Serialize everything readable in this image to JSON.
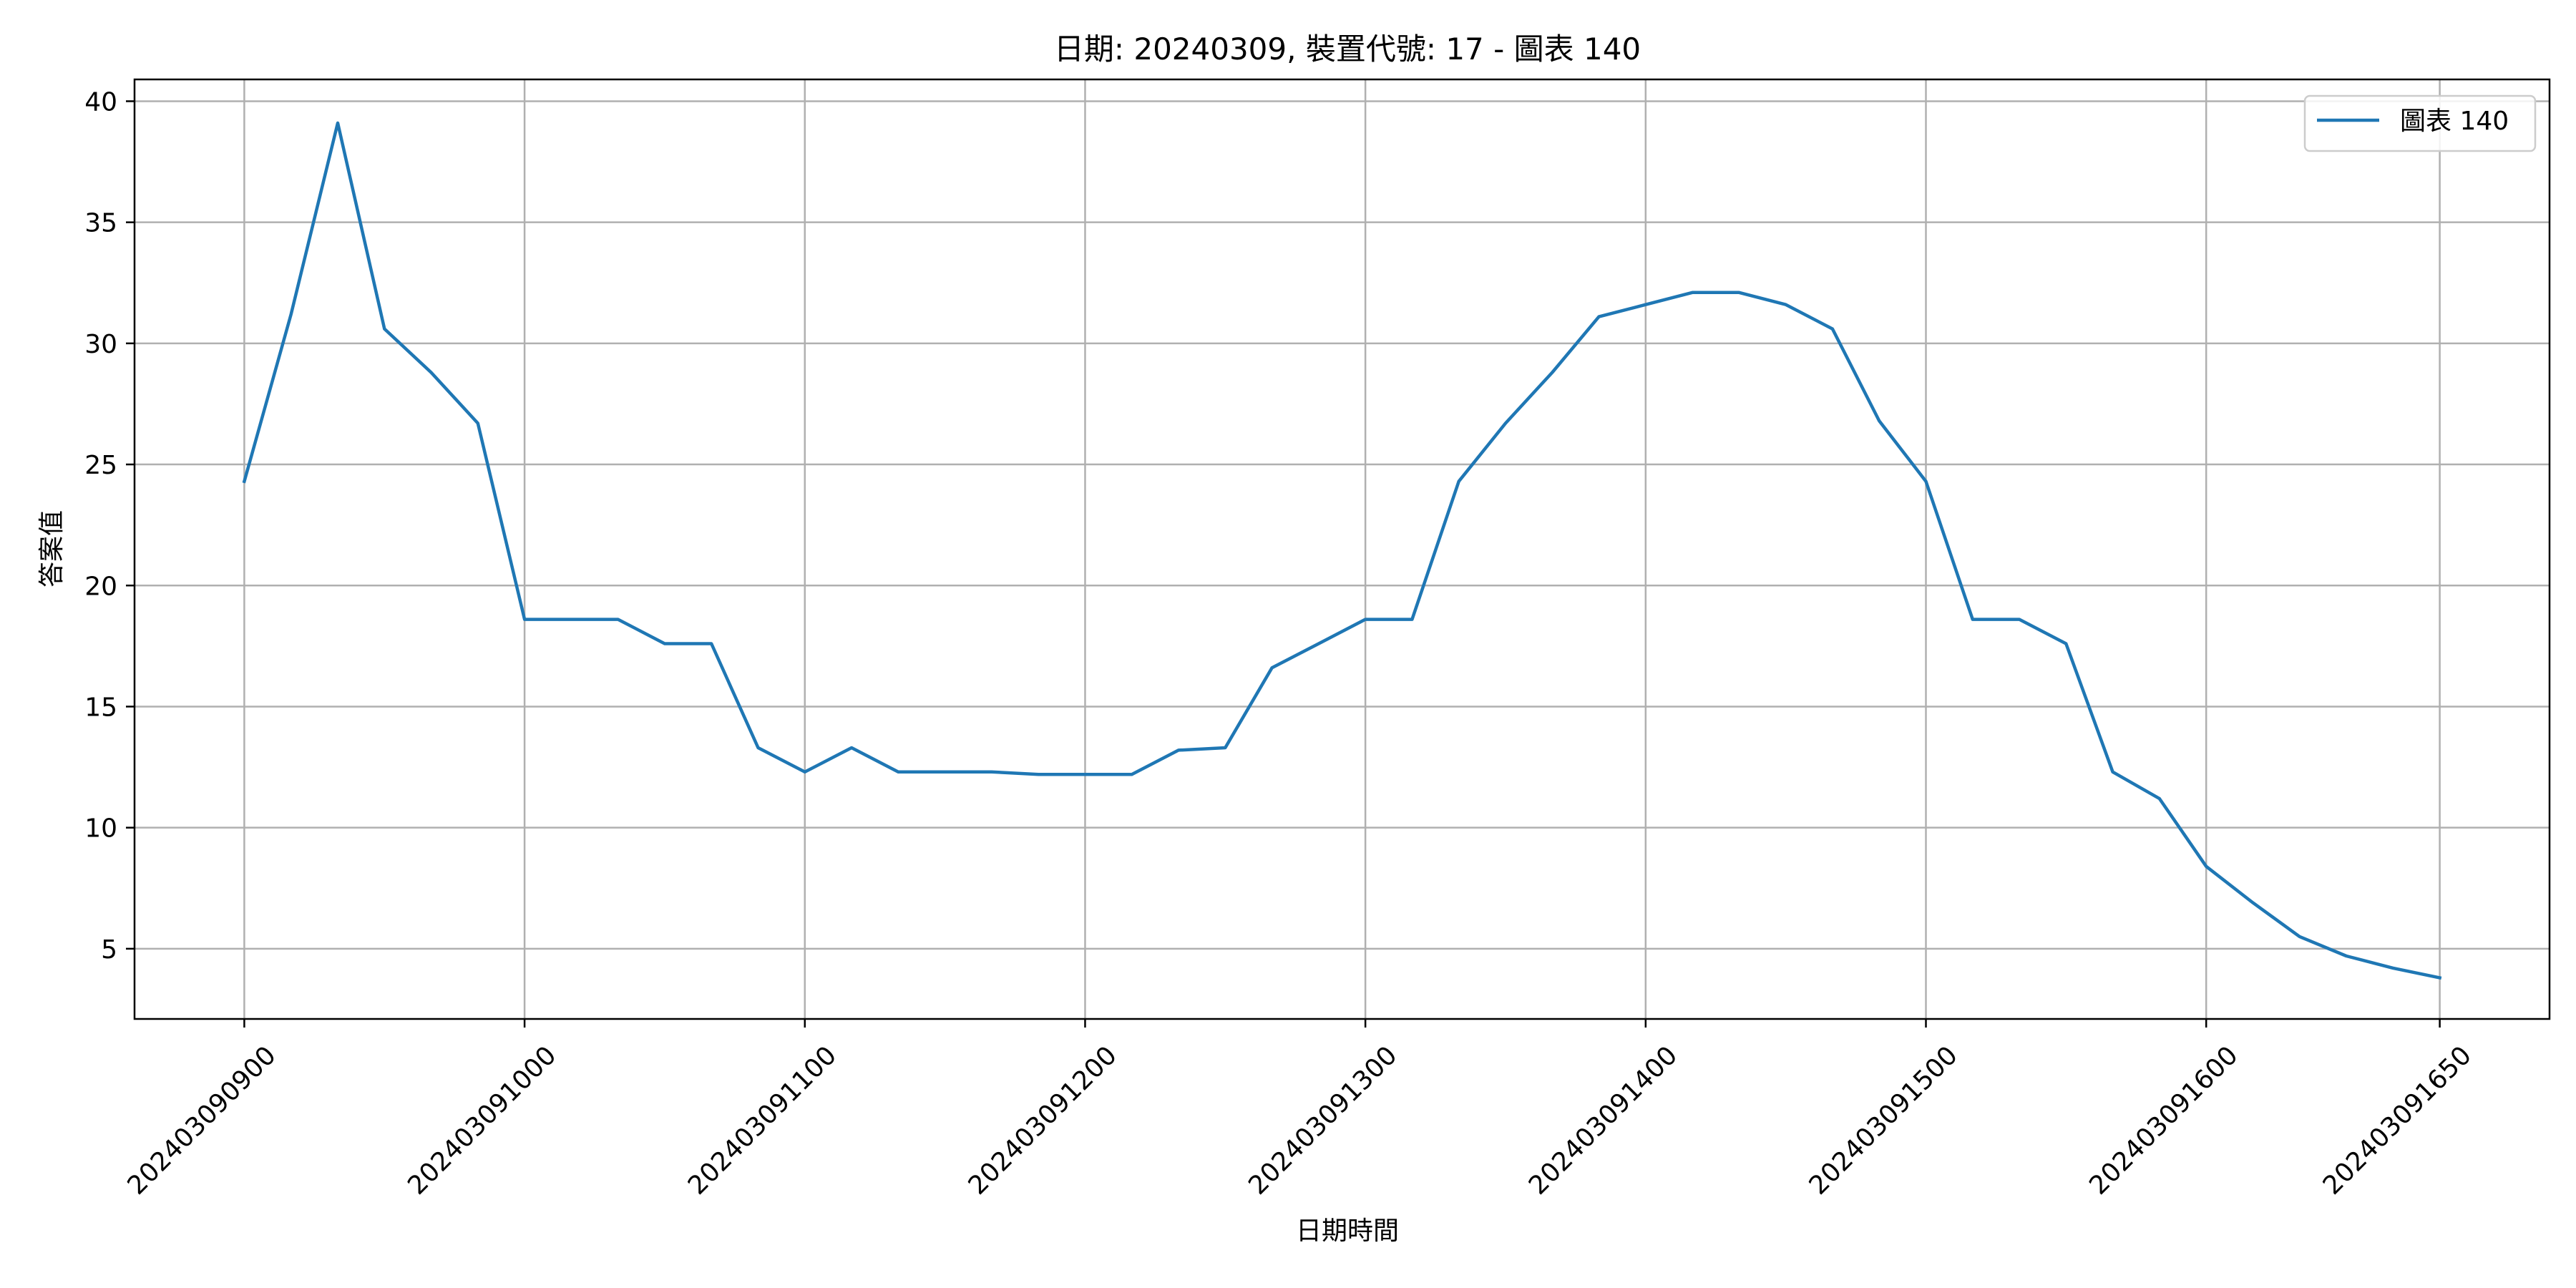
{
  "chart_data": {
    "type": "line",
    "title": "日期: 20240309, 裝置代號: 17 - 圖表 140",
    "xlabel": "日期時間",
    "ylabel": "答案值",
    "x_ticks": [
      "202403090900",
      "202403091000",
      "202403091100",
      "202403091200",
      "202403091300",
      "202403091400",
      "202403091500",
      "202403091600",
      "202403091650"
    ],
    "x_tick_positions": [
      0,
      60,
      120,
      180,
      240,
      300,
      360,
      420,
      470
    ],
    "x_minutes": [
      0,
      10,
      20,
      30,
      40,
      50,
      60,
      70,
      80,
      90,
      100,
      110,
      120,
      130,
      140,
      150,
      160,
      170,
      180,
      190,
      200,
      210,
      220,
      230,
      240,
      250,
      260,
      270,
      280,
      290,
      300,
      310,
      320,
      330,
      340,
      350,
      360,
      370,
      380,
      390,
      400,
      410,
      420,
      430,
      440,
      450,
      460,
      470
    ],
    "series": [
      {
        "name": "圖表 140",
        "color": "#1f77b4",
        "values": [
          24.3,
          31.2,
          39.1,
          30.6,
          28.8,
          26.7,
          18.6,
          18.6,
          18.6,
          17.6,
          17.6,
          13.3,
          12.3,
          13.3,
          12.3,
          12.3,
          12.3,
          12.2,
          12.2,
          12.2,
          13.2,
          13.3,
          16.6,
          17.6,
          18.6,
          18.6,
          24.3,
          26.7,
          28.8,
          31.1,
          31.6,
          32.1,
          32.1,
          31.6,
          30.6,
          26.8,
          24.3,
          18.6,
          18.6,
          17.6,
          12.3,
          11.2,
          8.4,
          6.9,
          5.5,
          4.7,
          4.2,
          3.8
        ]
      }
    ],
    "yticks": [
      5,
      10,
      15,
      20,
      25,
      30,
      35,
      40
    ],
    "ylim": [
      2.1,
      40.9
    ],
    "xlim": [
      -23.5,
      493.5
    ],
    "grid": true,
    "legend_position": "top-right"
  }
}
